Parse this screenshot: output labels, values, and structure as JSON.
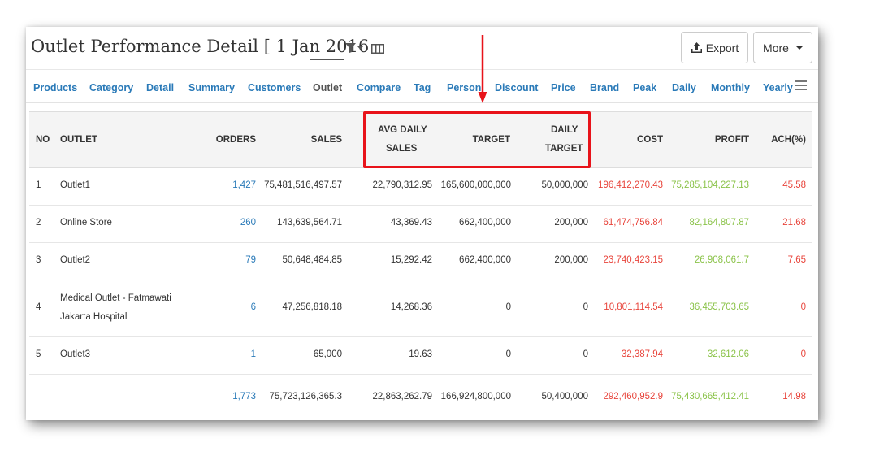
{
  "header": {
    "title": "Outlet Performance Detail [ 1 Jan 2016",
    "export_label": "Export",
    "more_label": "More"
  },
  "tabs": [
    {
      "label": "Products"
    },
    {
      "label": "Category"
    },
    {
      "label": "Detail"
    },
    {
      "label": "Summary"
    },
    {
      "label": "Customers"
    },
    {
      "label": "Outlet",
      "active": true
    },
    {
      "label": "Compare"
    },
    {
      "label": "Tag"
    },
    {
      "label": "Person"
    },
    {
      "label": "Discount"
    },
    {
      "label": "Price"
    },
    {
      "label": "Brand"
    },
    {
      "label": "Peak"
    },
    {
      "label": "Daily"
    },
    {
      "label": "Monthly"
    },
    {
      "label": "Yearly"
    }
  ],
  "table": {
    "columns": {
      "no": "NO",
      "outlet": "OUTLET",
      "orders": "ORDERS",
      "sales": "SALES",
      "avg_daily_sales_1": "AVG DAILY",
      "avg_daily_sales_2": "SALES",
      "target": "TARGET",
      "daily_target_1": "DAILY",
      "daily_target_2": "TARGET",
      "cost": "COST",
      "profit": "PROFIT",
      "ach": "ACH(%)"
    },
    "rows": [
      {
        "no": "1",
        "outlet": "Outlet1",
        "outlet2": "",
        "orders": "1,427",
        "sales": "75,481,516,497.57",
        "avg": "22,790,312.95",
        "target": "165,600,000,000",
        "daily_target": "50,000,000",
        "cost": "196,412,270.43",
        "profit": "75,285,104,227.13",
        "ach": "45.58"
      },
      {
        "no": "2",
        "outlet": "Online Store",
        "outlet2": "",
        "orders": "260",
        "sales": "143,639,564.71",
        "avg": "43,369.43",
        "target": "662,400,000",
        "daily_target": "200,000",
        "cost": "61,474,756.84",
        "profit": "82,164,807.87",
        "ach": "21.68"
      },
      {
        "no": "3",
        "outlet": "Outlet2",
        "outlet2": "",
        "orders": "79",
        "sales": "50,648,484.85",
        "avg": "15,292.42",
        "target": "662,400,000",
        "daily_target": "200,000",
        "cost": "23,740,423.15",
        "profit": "26,908,061.7",
        "ach": "7.65"
      },
      {
        "no": "4",
        "outlet": "Medical Outlet - Fatmawati",
        "outlet2": "Jakarta Hospital",
        "orders": "6",
        "sales": "47,256,818.18",
        "avg": "14,268.36",
        "target": "0",
        "daily_target": "0",
        "cost": "10,801,114.54",
        "profit": "36,455,703.65",
        "ach": "0"
      },
      {
        "no": "5",
        "outlet": "Outlet3",
        "outlet2": "",
        "orders": "1",
        "sales": "65,000",
        "avg": "19.63",
        "target": "0",
        "daily_target": "0",
        "cost": "32,387.94",
        "profit": "32,612.06",
        "ach": "0"
      }
    ],
    "totals": {
      "orders": "1,773",
      "sales": "75,723,126,365.3",
      "avg": "22,863,262.79",
      "target": "166,924,800,000",
      "daily_target": "50,400,000",
      "cost": "292,460,952.9",
      "profit": "75,430,665,412.41",
      "ach": "14.98"
    }
  },
  "annotation": {
    "highlight_color": "#e8131a"
  },
  "icons": [
    "filter-icon",
    "columns-icon",
    "upload-icon",
    "menu-icon",
    "arrow-down-icon"
  ]
}
